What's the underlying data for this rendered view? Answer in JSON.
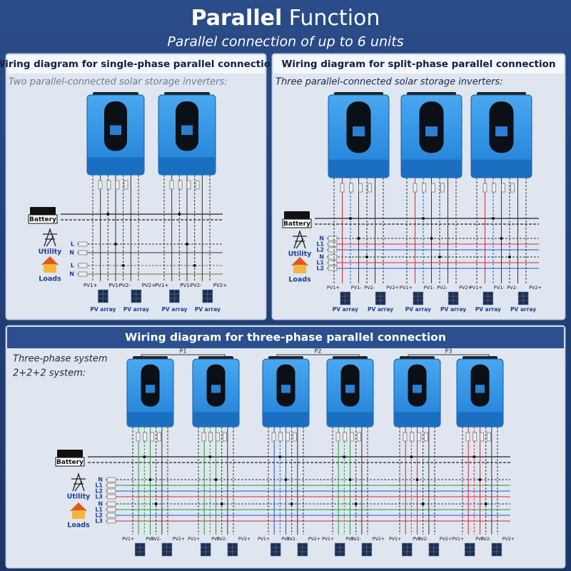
{
  "header": {
    "title": [
      "Parallel",
      "Function"
    ],
    "subtitle": "Parallel connection of up to 6 units"
  },
  "panels": [
    {
      "heading": "Wiring diagram for single-phase parallel connection",
      "caption": [
        "Two parallel-connected solar storage inverters:"
      ],
      "battery": "Battery",
      "utility": "Utility",
      "loads": "Loads",
      "utility_lines": [
        "L",
        "N"
      ],
      "load_lines": [
        "L",
        "N"
      ],
      "pv_terminals": [
        "PV1+",
        "PV1-",
        "PV2-",
        "PV2+"
      ],
      "pv_array": "PV array"
    },
    {
      "heading": "Wiring diagram for split-phase parallel connection",
      "caption": [
        "Three parallel-connected solar storage inverters:"
      ],
      "battery": "Battery",
      "utility": "Utility",
      "loads": "Loads",
      "utility_lines": [
        "N",
        "L1",
        "L2"
      ],
      "load_lines": [
        "N",
        "L1",
        "L2"
      ],
      "pv_terminals": [
        "PV1+",
        "PV1-",
        "PV2-",
        "PV2+"
      ],
      "pv_array": "PV array"
    },
    {
      "heading": "Wiring diagram for three-phase parallel connection",
      "caption": [
        "Three-phase system",
        "2+2+2 system:"
      ],
      "phase_groups": [
        "P1",
        "P2",
        "P3"
      ],
      "battery": "Battery",
      "utility": "Utility",
      "loads": "Loads",
      "utility_lines": [
        "N",
        "L1",
        "L2",
        "L3"
      ],
      "load_lines": [
        "N",
        "L1",
        "L2",
        "L3"
      ],
      "pv_terminals": [
        "PV1+",
        "PV1-",
        "PV2-",
        "PV2+"
      ]
    }
  ]
}
